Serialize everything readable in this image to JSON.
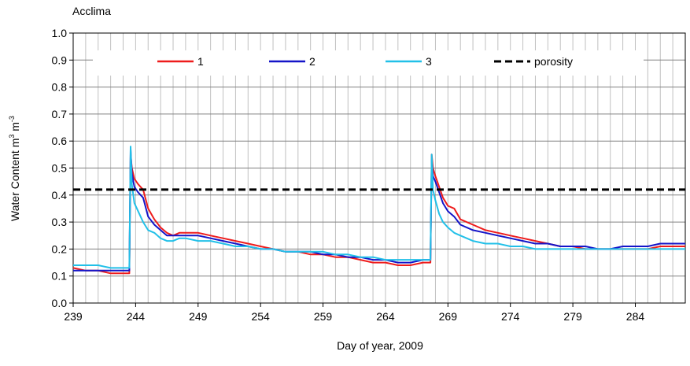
{
  "chart_data": {
    "type": "line",
    "title": "Acclima",
    "xlabel": "Day of year, 2009",
    "ylabel_main": "Water Content m",
    "ylabel_sup1": "3",
    "ylabel_mid": " m",
    "ylabel_sup2": "-3",
    "xlim": [
      239,
      288
    ],
    "ylim": [
      0,
      1.0
    ],
    "x_ticks": [
      239,
      244,
      249,
      254,
      259,
      264,
      269,
      274,
      279,
      284
    ],
    "x_tick_labels": [
      "239",
      "244",
      "249",
      "254",
      "259",
      "264",
      "269",
      "274",
      "279",
      "284"
    ],
    "y_ticks": [
      0,
      0.1,
      0.2,
      0.3,
      0.4,
      0.5,
      0.6,
      0.7,
      0.8,
      0.9,
      1.0
    ],
    "y_tick_labels": [
      "0.0",
      "0.1",
      "0.2",
      "0.3",
      "0.4",
      "0.5",
      "0.6",
      "0.7",
      "0.8",
      "0.9",
      "1.0"
    ],
    "grid": "vertical gridlines every day, horizontal every 0.1",
    "legend_position": "top inside plot",
    "series": [
      {
        "name": "1",
        "color": "#ee1c1c",
        "x": [
          239,
          240,
          241,
          242,
          243,
          243.5,
          243.6,
          243.7,
          243.9,
          244.2,
          244.6,
          245,
          245.5,
          246,
          246.5,
          247,
          247.5,
          248,
          249,
          250,
          251,
          252,
          253,
          254,
          255,
          256,
          257,
          258,
          259,
          260,
          261,
          262,
          263,
          264,
          265,
          266,
          267,
          267.6,
          267.7,
          267.8,
          268,
          268.3,
          268.6,
          269,
          269.5,
          270,
          271,
          272,
          273,
          274,
          275,
          276,
          277,
          278,
          279,
          280,
          281,
          282,
          283,
          284,
          285,
          286,
          287,
          288
        ],
        "y": [
          0.13,
          0.12,
          0.12,
          0.11,
          0.11,
          0.11,
          0.55,
          0.5,
          0.46,
          0.44,
          0.42,
          0.35,
          0.31,
          0.28,
          0.26,
          0.25,
          0.26,
          0.26,
          0.26,
          0.25,
          0.24,
          0.23,
          0.22,
          0.21,
          0.2,
          0.19,
          0.19,
          0.18,
          0.18,
          0.17,
          0.17,
          0.16,
          0.15,
          0.15,
          0.14,
          0.14,
          0.15,
          0.15,
          0.55,
          0.5,
          0.47,
          0.43,
          0.39,
          0.36,
          0.35,
          0.31,
          0.29,
          0.27,
          0.26,
          0.25,
          0.24,
          0.23,
          0.22,
          0.21,
          0.21,
          0.2,
          0.2,
          0.2,
          0.2,
          0.2,
          0.2,
          0.21,
          0.21,
          0.21
        ]
      },
      {
        "name": "2",
        "color": "#1414c8",
        "x": [
          239,
          240,
          241,
          242,
          243,
          243.5,
          243.6,
          243.7,
          243.9,
          244.2,
          244.6,
          245,
          245.5,
          246,
          246.5,
          247,
          247.5,
          248,
          249,
          250,
          251,
          252,
          253,
          254,
          255,
          256,
          257,
          258,
          259,
          260,
          261,
          262,
          263,
          264,
          265,
          266,
          267,
          267.6,
          267.7,
          267.8,
          268,
          268.3,
          268.6,
          269,
          269.5,
          270,
          271,
          272,
          273,
          274,
          275,
          276,
          277,
          278,
          279,
          280,
          281,
          282,
          283,
          284,
          285,
          286,
          287,
          288
        ],
        "y": [
          0.12,
          0.12,
          0.12,
          0.12,
          0.12,
          0.12,
          0.57,
          0.48,
          0.43,
          0.41,
          0.39,
          0.32,
          0.29,
          0.27,
          0.25,
          0.25,
          0.25,
          0.25,
          0.25,
          0.24,
          0.23,
          0.22,
          0.21,
          0.2,
          0.2,
          0.19,
          0.19,
          0.19,
          0.18,
          0.18,
          0.17,
          0.17,
          0.16,
          0.16,
          0.15,
          0.15,
          0.16,
          0.16,
          0.53,
          0.47,
          0.45,
          0.41,
          0.37,
          0.34,
          0.32,
          0.29,
          0.27,
          0.26,
          0.25,
          0.24,
          0.23,
          0.22,
          0.22,
          0.21,
          0.21,
          0.21,
          0.2,
          0.2,
          0.21,
          0.21,
          0.21,
          0.22,
          0.22,
          0.22
        ]
      },
      {
        "name": "3",
        "color": "#22c0e8",
        "x": [
          239,
          240,
          241,
          242,
          243,
          243.5,
          243.6,
          243.7,
          243.9,
          244.2,
          244.6,
          245,
          245.5,
          246,
          246.5,
          247,
          247.5,
          248,
          249,
          250,
          251,
          252,
          253,
          254,
          255,
          256,
          257,
          258,
          259,
          260,
          261,
          262,
          263,
          264,
          265,
          266,
          267,
          267.6,
          267.7,
          267.8,
          268,
          268.3,
          268.6,
          269,
          269.5,
          270,
          271,
          272,
          273,
          274,
          275,
          276,
          277,
          278,
          279,
          280,
          281,
          282,
          283,
          284,
          285,
          286,
          287,
          288
        ],
        "y": [
          0.14,
          0.14,
          0.14,
          0.13,
          0.13,
          0.13,
          0.58,
          0.44,
          0.37,
          0.34,
          0.3,
          0.27,
          0.26,
          0.24,
          0.23,
          0.23,
          0.24,
          0.24,
          0.23,
          0.23,
          0.22,
          0.21,
          0.21,
          0.2,
          0.2,
          0.19,
          0.19,
          0.19,
          0.19,
          0.18,
          0.18,
          0.17,
          0.17,
          0.16,
          0.16,
          0.16,
          0.16,
          0.16,
          0.55,
          0.42,
          0.38,
          0.33,
          0.3,
          0.28,
          0.26,
          0.25,
          0.23,
          0.22,
          0.22,
          0.21,
          0.21,
          0.2,
          0.2,
          0.2,
          0.2,
          0.2,
          0.2,
          0.2,
          0.2,
          0.2,
          0.2,
          0.2,
          0.2,
          0.2
        ]
      },
      {
        "name": "porosity",
        "color": "#000000",
        "style": "dashed",
        "x": [
          239,
          288
        ],
        "y": [
          0.42,
          0.42
        ]
      }
    ]
  }
}
